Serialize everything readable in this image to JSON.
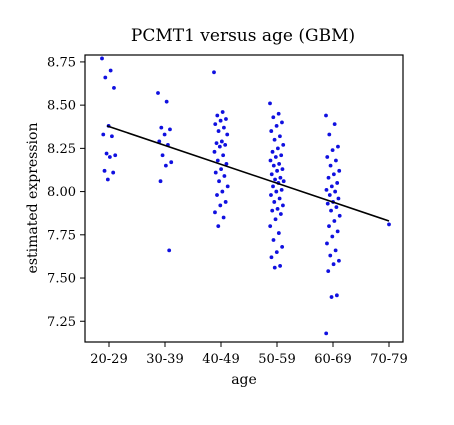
{
  "chart_data": {
    "type": "scatter",
    "title": "PCMT1 versus age (GBM)",
    "xlabel": "age",
    "ylabel": "estimated expression",
    "categories": [
      "20-29",
      "30-39",
      "40-49",
      "50-59",
      "60-69",
      "70-79"
    ],
    "y_ticks": [
      "7.25",
      "7.50",
      "7.75",
      "8.00",
      "8.25",
      "8.50",
      "8.75"
    ],
    "ylim": [
      7.13,
      8.79
    ],
    "grid": false,
    "point_color": "#1010e0",
    "trend_line": {
      "start": {
        "category": "20-29",
        "y": 8.38
      },
      "end": {
        "category": "70-79",
        "y": 7.83
      }
    },
    "series": [
      {
        "category": "20-29",
        "values": [
          8.77,
          8.7,
          8.66,
          8.6,
          8.38,
          8.33,
          8.32,
          8.22,
          8.21,
          8.2,
          8.12,
          8.11,
          8.07
        ]
      },
      {
        "category": "30-39",
        "values": [
          8.57,
          8.52,
          8.37,
          8.36,
          8.33,
          8.29,
          8.27,
          8.21,
          8.17,
          8.15,
          8.06,
          7.66
        ]
      },
      {
        "category": "40-49",
        "values": [
          8.69,
          8.46,
          8.44,
          8.42,
          8.41,
          8.39,
          8.37,
          8.35,
          8.33,
          8.29,
          8.28,
          8.27,
          8.26,
          8.23,
          8.21,
          8.18,
          8.16,
          8.13,
          8.11,
          8.09,
          8.06,
          8.03,
          8.0,
          7.98,
          7.94,
          7.92,
          7.88,
          7.85,
          7.8
        ]
      },
      {
        "category": "50-59",
        "values": [
          8.51,
          8.45,
          8.43,
          8.4,
          8.38,
          8.35,
          8.32,
          8.3,
          8.27,
          8.25,
          8.23,
          8.21,
          8.2,
          8.18,
          8.16,
          8.15,
          8.13,
          8.12,
          8.1,
          8.08,
          8.07,
          8.06,
          8.05,
          8.03,
          8.01,
          8.0,
          7.98,
          7.96,
          7.94,
          7.92,
          7.9,
          7.89,
          7.87,
          7.84,
          7.8,
          7.76,
          7.72,
          7.68,
          7.65,
          7.62,
          7.57,
          7.56
        ]
      },
      {
        "category": "60-69",
        "values": [
          8.44,
          8.39,
          8.33,
          8.26,
          8.24,
          8.2,
          8.18,
          8.15,
          8.12,
          8.1,
          8.08,
          8.05,
          8.03,
          8.01,
          8.0,
          7.98,
          7.96,
          7.94,
          7.93,
          7.91,
          7.89,
          7.86,
          7.83,
          7.8,
          7.77,
          7.74,
          7.7,
          7.66,
          7.63,
          7.6,
          7.58,
          7.54,
          7.4,
          7.39,
          7.18
        ]
      },
      {
        "category": "70-79",
        "values": [
          7.81
        ]
      }
    ]
  }
}
